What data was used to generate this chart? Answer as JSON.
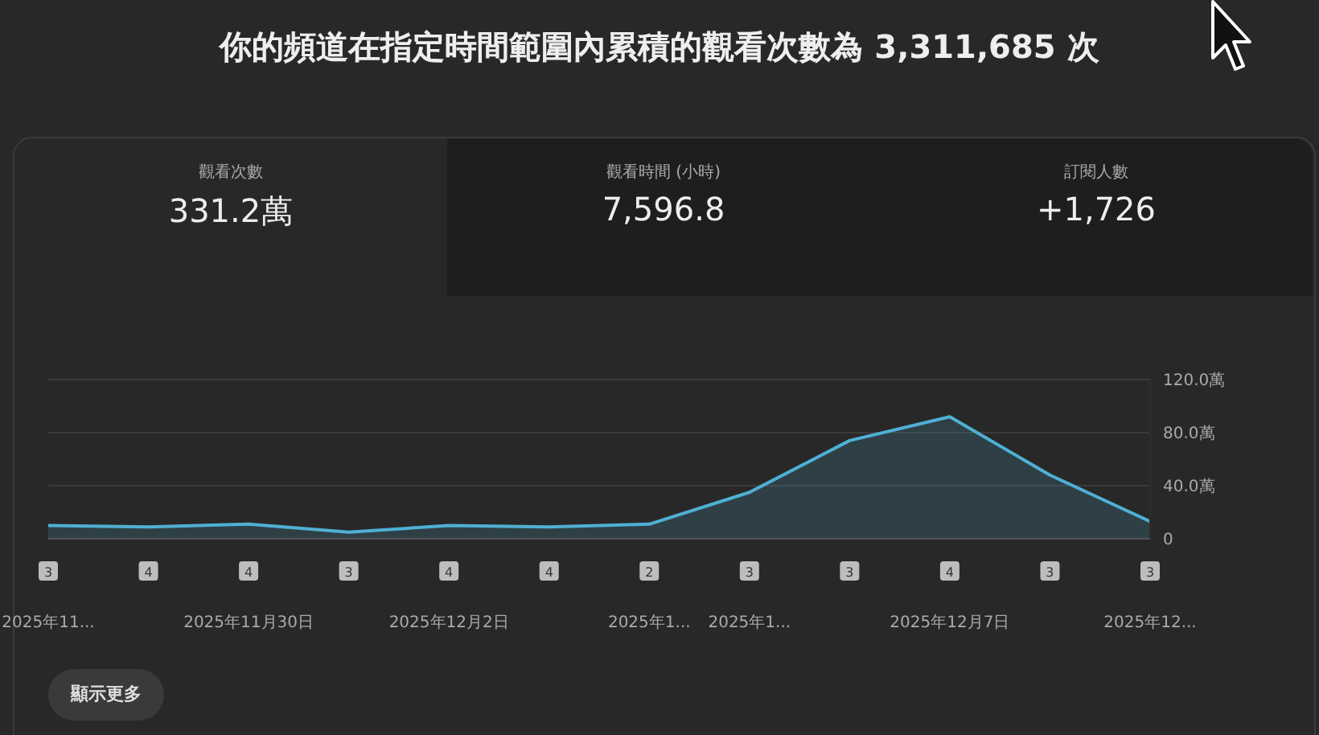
{
  "chart_data": [
    {
      "type": "other",
      "title": "你的頻道在指定時間範圍內累積的觀看次數為 3,311,685 次",
      "categories": [
        "觀看次數",
        "觀看時間 (小時)",
        "訂閱人數"
      ],
      "value_labels": [
        "331.2萬",
        "7,596.8",
        "+1,726"
      ]
    },
    {
      "type": "area",
      "categories": [
        "2025年11...",
        null,
        "2025年11月30日",
        null,
        "2025年12月2日",
        null,
        "2025年1...",
        "2025年1...",
        null,
        "2025年12月7日",
        null,
        "2025年12..."
      ],
      "series": [
        {
          "color": "#4fb0d4",
          "values": [
            10,
            9,
            11,
            5,
            10,
            9,
            11,
            35,
            74,
            92,
            48,
            13
          ]
        }
      ],
      "ylim": [
        0,
        120
      ],
      "yticks": [
        0,
        {
          "value": 40,
          "label": "40.0萬"
        },
        {
          "value": 80,
          "label": "80.0萬"
        },
        {
          "value": 120,
          "label": "120.0萬"
        }
      ],
      "grid": "y",
      "legend": false,
      "marker": "none",
      "line_style": "solid",
      "annotations": [
        "3",
        "4",
        "4",
        "3",
        "4",
        "4",
        "2",
        "3",
        "3",
        "4",
        "3",
        "3",
        "顯示更多"
      ]
    }
  ]
}
